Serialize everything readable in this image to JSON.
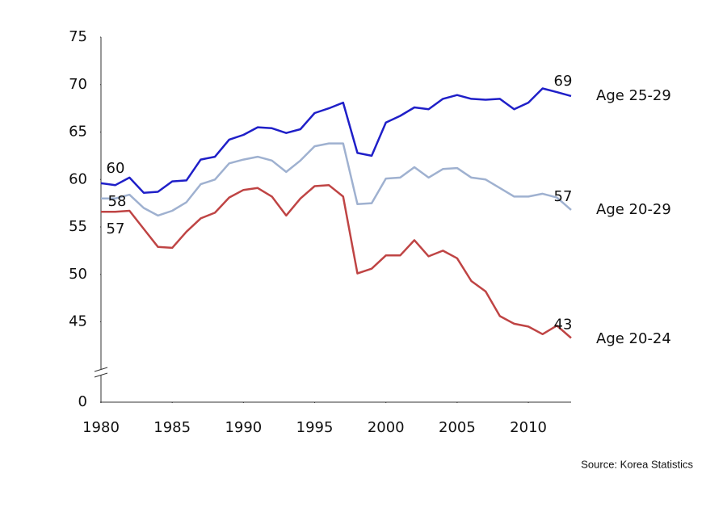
{
  "chart_data": {
    "type": "line",
    "source": "Source: Korea Statistics",
    "x": [
      1980,
      1981,
      1982,
      1983,
      1984,
      1985,
      1986,
      1987,
      1988,
      1989,
      1990,
      1991,
      1992,
      1993,
      1994,
      1995,
      1996,
      1997,
      1998,
      1999,
      2000,
      2001,
      2002,
      2003,
      2004,
      2005,
      2006,
      2007,
      2008,
      2009,
      2010,
      2011,
      2012,
      2013
    ],
    "xlim": [
      1980,
      2013
    ],
    "xticks": [
      1980,
      1985,
      1990,
      1995,
      2000,
      2005,
      2010
    ],
    "ylim": [
      0,
      75
    ],
    "yticks": [
      0,
      45,
      50,
      55,
      60,
      65,
      70,
      75
    ],
    "y_axis_break": true,
    "series": [
      {
        "name": "Age 25-29",
        "color": "#1f1fc8",
        "values": [
          59.6,
          59.4,
          60.2,
          58.6,
          58.7,
          59.8,
          59.9,
          62.1,
          62.4,
          64.2,
          64.7,
          65.5,
          65.4,
          64.9,
          65.3,
          67.0,
          67.5,
          68.1,
          62.8,
          62.5,
          66.0,
          66.7,
          67.6,
          67.4,
          68.5,
          68.9,
          68.5,
          68.4,
          68.5,
          67.4,
          68.1,
          69.6,
          69.2,
          68.8
        ],
        "value_labels": [
          "60",
          null,
          null,
          null,
          null,
          null,
          null,
          null,
          null,
          null,
          null,
          null,
          null,
          null,
          null,
          null,
          null,
          null,
          null,
          null,
          null,
          null,
          null,
          null,
          null,
          null,
          null,
          null,
          null,
          null,
          null,
          null,
          null,
          "69"
        ]
      },
      {
        "name": "Age 20-29",
        "color": "#9fb1d0",
        "values": [
          58.0,
          58.0,
          58.4,
          57.0,
          56.2,
          56.7,
          57.6,
          59.5,
          60.0,
          61.7,
          62.1,
          62.4,
          62.0,
          60.8,
          62.0,
          63.5,
          63.8,
          63.8,
          57.4,
          57.5,
          60.1,
          60.2,
          61.3,
          60.2,
          61.1,
          61.2,
          60.2,
          60.0,
          59.1,
          58.2,
          58.2,
          58.5,
          58.1,
          56.8
        ],
        "value_labels": [
          "58",
          null,
          null,
          null,
          null,
          null,
          null,
          null,
          null,
          null,
          null,
          null,
          null,
          null,
          null,
          null,
          null,
          null,
          null,
          null,
          null,
          null,
          null,
          null,
          null,
          null,
          null,
          null,
          null,
          null,
          null,
          null,
          null,
          "57"
        ]
      },
      {
        "name": "Age 20-24",
        "color": "#bf4444",
        "values": [
          56.6,
          56.6,
          56.7,
          54.8,
          52.9,
          52.8,
          54.5,
          55.9,
          56.5,
          58.1,
          58.9,
          59.1,
          58.2,
          56.2,
          58.0,
          59.3,
          59.4,
          58.2,
          50.1,
          50.6,
          52.0,
          52.0,
          53.6,
          51.9,
          52.5,
          51.7,
          49.3,
          48.2,
          45.6,
          44.8,
          44.5,
          43.7,
          44.6,
          43.3
        ],
        "value_labels": [
          "57",
          null,
          null,
          null,
          null,
          null,
          null,
          null,
          null,
          null,
          null,
          null,
          null,
          null,
          null,
          null,
          null,
          null,
          null,
          null,
          null,
          null,
          null,
          null,
          null,
          null,
          null,
          null,
          null,
          null,
          null,
          null,
          null,
          "43"
        ]
      }
    ]
  }
}
